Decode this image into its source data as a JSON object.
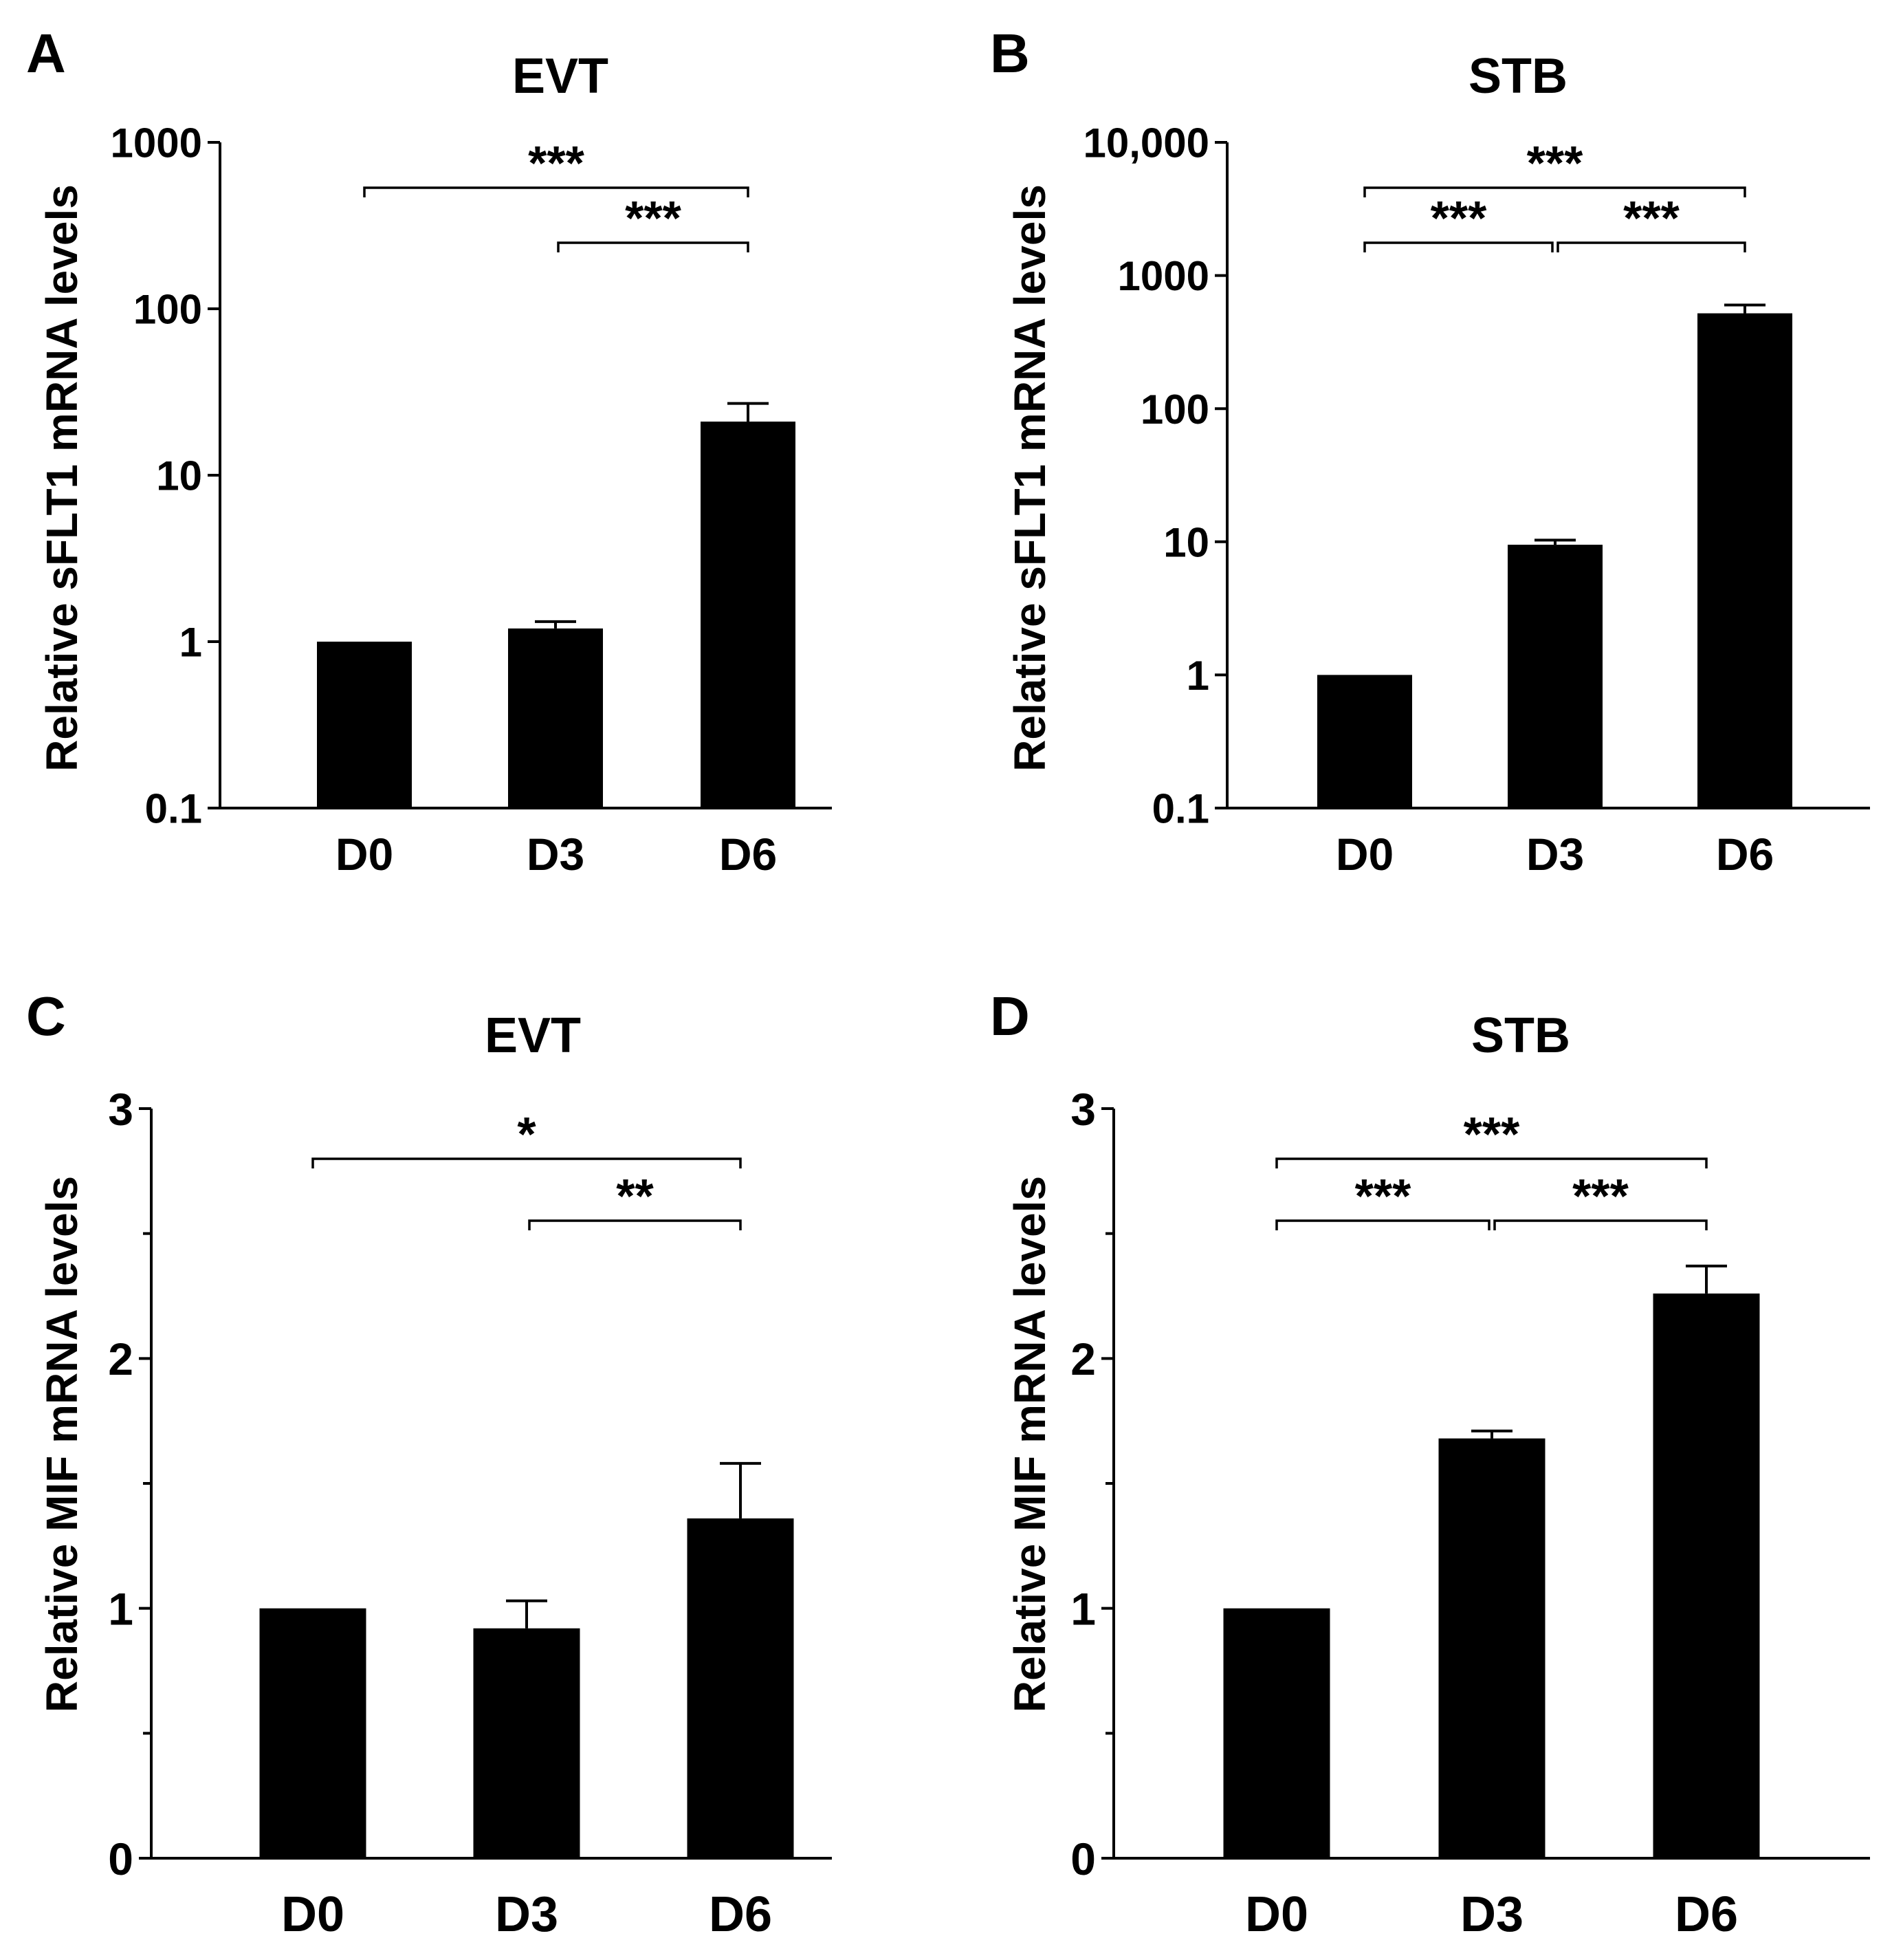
{
  "chart_data": [
    {
      "panel": "A",
      "type": "bar",
      "title": "EVT",
      "ylabel": "Relative sFLT1 mRNA levels",
      "xlabel": "",
      "yscale": "log",
      "ylim": [
        0.1,
        1000
      ],
      "yticks": [
        0.1,
        1,
        10,
        100,
        1000
      ],
      "yticklabels": [
        "0.1",
        "1",
        "10",
        "100",
        "1000"
      ],
      "categories": [
        "D0",
        "D3",
        "D6"
      ],
      "values": [
        1,
        1.2,
        21
      ],
      "errors": [
        0,
        0.12,
        6
      ],
      "bar_color": "#000000",
      "significance": [
        {
          "from": "D0",
          "to": "D6",
          "label": "***"
        },
        {
          "from": "D3",
          "to": "D6",
          "label": "***"
        }
      ]
    },
    {
      "panel": "B",
      "type": "bar",
      "title": "STB",
      "ylabel": "Relative sFLT1 mRNA levels",
      "xlabel": "",
      "yscale": "log",
      "ylim": [
        0.1,
        10000
      ],
      "yticks": [
        0.1,
        1,
        10,
        100,
        1000,
        10000
      ],
      "yticklabels": [
        "0.1",
        "1",
        "10",
        "100",
        "1000",
        "10,000"
      ],
      "categories": [
        "D0",
        "D3",
        "D6"
      ],
      "values": [
        1,
        9.5,
        520
      ],
      "errors": [
        0,
        0.8,
        80
      ],
      "bar_color": "#000000",
      "significance": [
        {
          "from": "D0",
          "to": "D6",
          "label": "***"
        },
        {
          "from": "D0",
          "to": "D3",
          "label": "***"
        },
        {
          "from": "D3",
          "to": "D6",
          "label": "***"
        }
      ]
    },
    {
      "panel": "C",
      "type": "bar",
      "title": "EVT",
      "ylabel": "Relative MIF mRNA levels",
      "xlabel": "",
      "yscale": "linear",
      "ylim": [
        0,
        3
      ],
      "yticks": [
        0,
        1,
        2,
        3
      ],
      "yticklabels": [
        "0",
        "1",
        "2",
        "3"
      ],
      "minor_ticks": [
        0.5,
        1.5,
        2.5
      ],
      "categories": [
        "D0",
        "D3",
        "D6"
      ],
      "values": [
        1,
        0.92,
        1.36
      ],
      "errors": [
        0,
        0.11,
        0.22
      ],
      "bar_color": "#000000",
      "significance": [
        {
          "from": "D0",
          "to": "D6",
          "label": "*"
        },
        {
          "from": "D3",
          "to": "D6",
          "label": "**"
        }
      ]
    },
    {
      "panel": "D",
      "type": "bar",
      "title": "STB",
      "ylabel": "Relative MIF mRNA levels",
      "xlabel": "",
      "yscale": "linear",
      "ylim": [
        0,
        3
      ],
      "yticks": [
        0,
        1,
        2,
        3
      ],
      "yticklabels": [
        "0",
        "1",
        "2",
        "3"
      ],
      "minor_ticks": [
        0.5,
        1.5,
        2.5
      ],
      "categories": [
        "D0",
        "D3",
        "D6"
      ],
      "values": [
        1,
        1.68,
        2.26
      ],
      "errors": [
        0,
        0.03,
        0.11
      ],
      "bar_color": "#000000",
      "significance": [
        {
          "from": "D0",
          "to": "D6",
          "label": "***"
        },
        {
          "from": "D0",
          "to": "D3",
          "label": "***"
        },
        {
          "from": "D3",
          "to": "D6",
          "label": "***"
        }
      ]
    }
  ]
}
